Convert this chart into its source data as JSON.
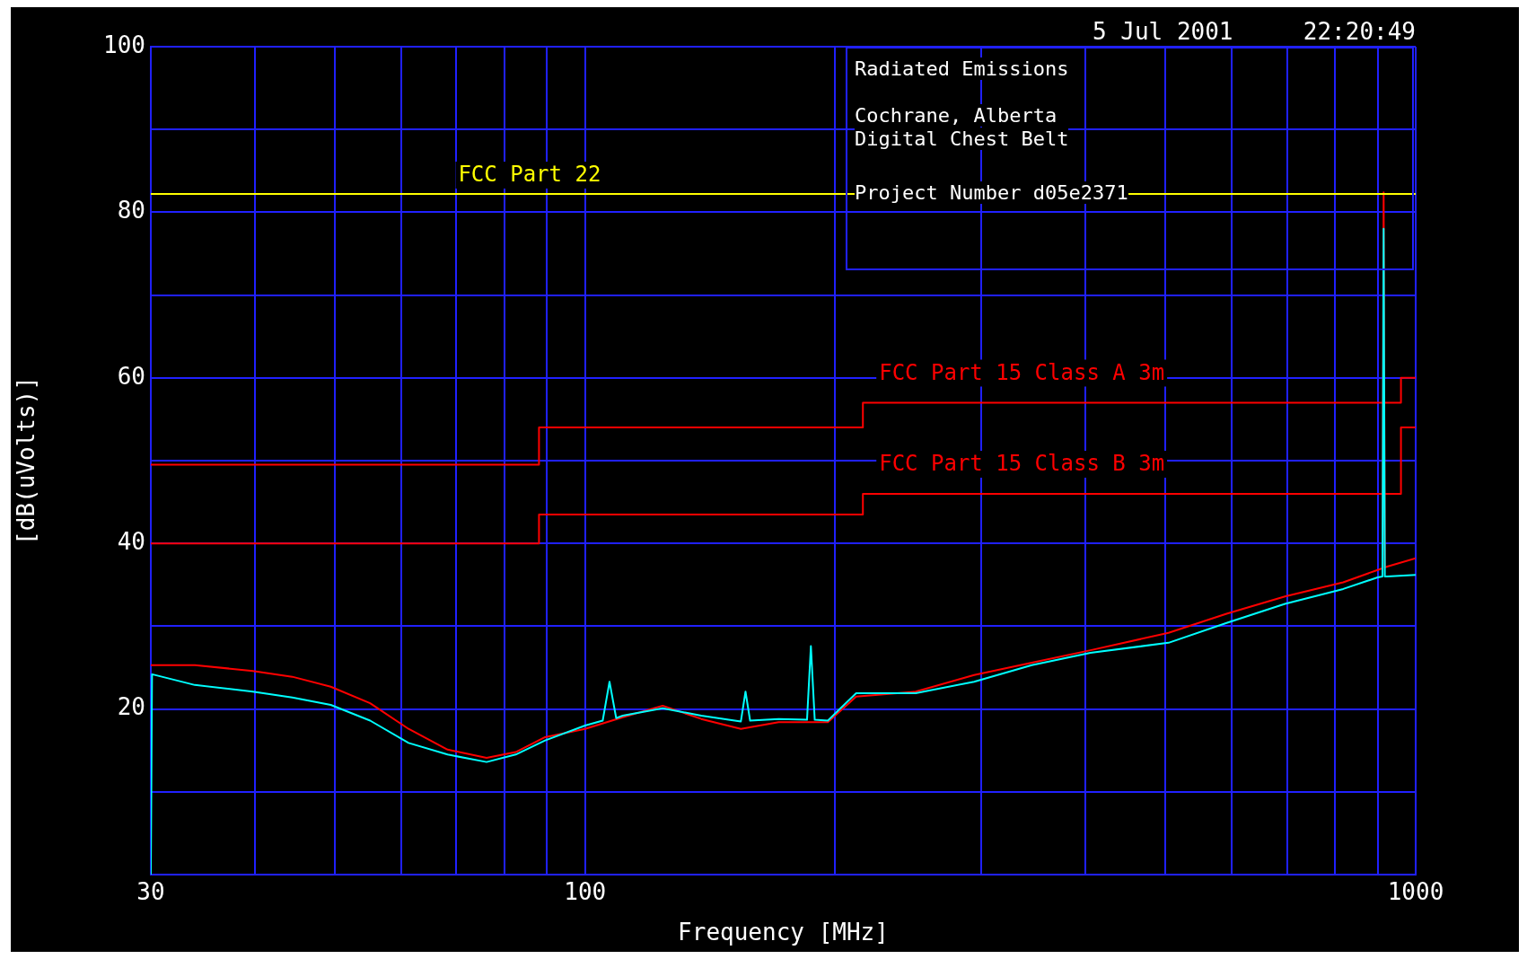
{
  "chart_data": {
    "type": "line",
    "title": "Radiated Emissions",
    "xlabel": "Frequency [MHz]",
    "ylabel": "[dB(uVolts)]",
    "annotations": [
      "5 Jul 2001     22:20:49",
      "Cochrane, Alberta",
      "Digital Chest Belt",
      "Project Number d05e2371"
    ],
    "log": "x",
    "grid": true,
    "legend": false,
    "marker": "none",
    "line_style": "solid",
    "xlim": [
      30,
      1000
    ],
    "ylim": [
      0,
      100
    ],
    "xticks": [
      30,
      {
        "value": 40,
        "label": null
      },
      {
        "value": 50,
        "label": null
      },
      {
        "value": 60,
        "label": null
      },
      {
        "value": 70,
        "label": null
      },
      {
        "value": 80,
        "label": null
      },
      {
        "value": 90,
        "label": null
      },
      100,
      {
        "value": 200,
        "label": null
      },
      {
        "value": 300,
        "label": null
      },
      {
        "value": 400,
        "label": null
      },
      {
        "value": 500,
        "label": null
      },
      {
        "value": 600,
        "label": null
      },
      {
        "value": 700,
        "label": null
      },
      {
        "value": 800,
        "label": null
      },
      {
        "value": 900,
        "label": null
      },
      1000
    ],
    "yticks": [
      {
        "value": 0,
        "label": null
      },
      {
        "value": 10,
        "label": null
      },
      20,
      {
        "value": 30,
        "label": null
      },
      40,
      {
        "value": 50,
        "label": null
      },
      60,
      {
        "value": 70,
        "label": null
      },
      80,
      {
        "value": 90,
        "label": null
      },
      100
    ],
    "ref_lines": [
      {
        "axis": "y",
        "value": 82.2,
        "label": "FCC Part 22",
        "color": "#ffff00"
      }
    ],
    "series": [
      {
        "name": "FCC Part 15 Class A 3m",
        "color": "#ff0000",
        "x": [
          30,
          88,
          88,
          216,
          216,
          960,
          960,
          1000
        ],
        "values": [
          49.5,
          49.5,
          54,
          54,
          57,
          57,
          60,
          60
        ]
      },
      {
        "name": "FCC Part 15 Class B 3m",
        "color": "#ff0000",
        "x": [
          30,
          88,
          88,
          216,
          216,
          960,
          960,
          1000
        ],
        "values": [
          40,
          40,
          43.5,
          43.5,
          46,
          46,
          54,
          54
        ]
      },
      {
        "color": "#ff0000",
        "x": [
          30,
          33.9,
          39.8,
          44.4,
          49.4,
          55.1,
          61.3,
          68.3,
          76.1,
          82.5,
          89.5,
          100,
          111,
          124,
          138,
          154,
          171,
          196,
          212,
          250,
          294,
          345,
          406,
          504,
          592,
          696,
          818,
          900,
          912,
          915,
          918,
          924,
          1000
        ],
        "values": [
          25.3,
          25.3,
          24.6,
          23.9,
          22.7,
          20.7,
          17.6,
          15.1,
          14.1,
          14.8,
          16.6,
          17.6,
          19,
          20.4,
          18.8,
          17.6,
          18.4,
          18.4,
          21.5,
          22.1,
          24.1,
          25.6,
          27.1,
          29.2,
          31.5,
          33.6,
          35.3,
          36.8,
          37,
          82.4,
          37.1,
          37.2,
          38.2
        ]
      },
      {
        "color": "#00ffff",
        "x": [
          30,
          30.1,
          33.9,
          39.8,
          44.4,
          49.4,
          55.1,
          61.3,
          68.3,
          76.1,
          82.5,
          89.5,
          100,
          105,
          107,
          109,
          111,
          124,
          138,
          154,
          156,
          158,
          171,
          185,
          187,
          189,
          196,
          212,
          250,
          294,
          345,
          406,
          504,
          592,
          696,
          818,
          900,
          912,
          915,
          918,
          924,
          1000
        ],
        "values": [
          0,
          24.2,
          22.9,
          22.1,
          21.4,
          20.5,
          18.6,
          15.9,
          14.5,
          13.6,
          14.5,
          16.2,
          18,
          18.6,
          23.3,
          18.9,
          19.2,
          20.1,
          19.2,
          18.5,
          22.1,
          18.6,
          18.8,
          18.7,
          27.6,
          18.7,
          18.6,
          21.9,
          21.9,
          23.3,
          25.3,
          26.8,
          28,
          30.4,
          32.7,
          34.5,
          35.9,
          36,
          78,
          36,
          36,
          36.2
        ]
      }
    ]
  }
}
